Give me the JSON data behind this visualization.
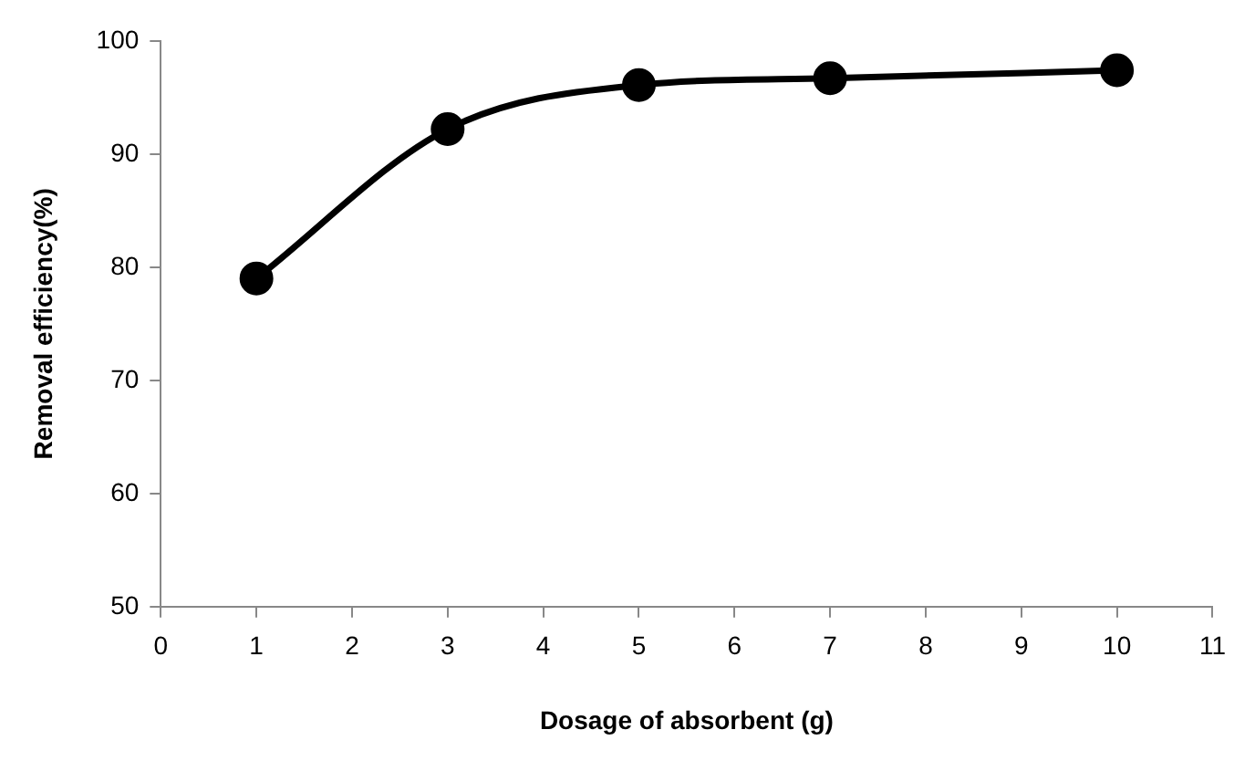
{
  "chart_data": {
    "type": "line",
    "xlabel": "Dosage of absorbent (g)",
    "ylabel": "Removal efficiency(%)",
    "x": [
      1,
      3,
      5,
      7,
      10
    ],
    "series": [
      {
        "color": "#000000",
        "values": [
          79,
          92.2,
          96.1,
          96.7,
          97.4
        ]
      }
    ],
    "xlim": [
      0,
      11
    ],
    "xticks": [
      0,
      1,
      2,
      3,
      4,
      5,
      6,
      7,
      8,
      9,
      10,
      11
    ],
    "ylim": [
      50,
      100
    ],
    "yticks": [
      50,
      60,
      70,
      80,
      90,
      100
    ],
    "grid": false,
    "legend": false,
    "marker": "circle",
    "line_style": "solid"
  }
}
